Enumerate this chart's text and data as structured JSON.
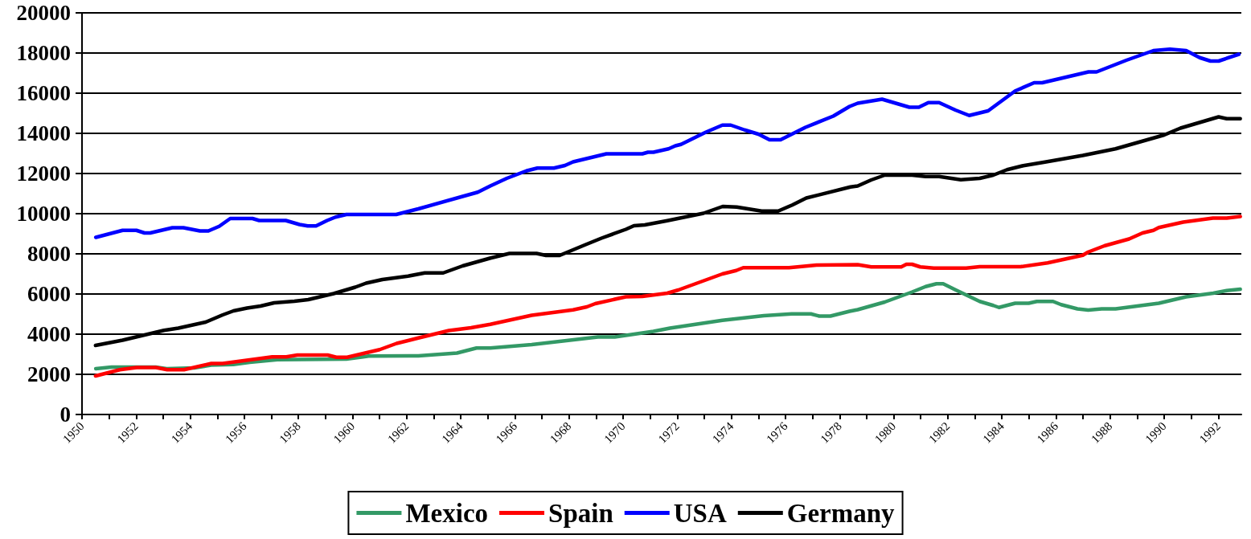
{
  "chart_data": {
    "type": "line",
    "xlim": [
      1950,
      1992.85
    ],
    "xticks": [
      1950,
      {
        "value": 1951,
        "label": null
      },
      1952,
      {
        "value": 1953,
        "label": null
      },
      1954,
      {
        "value": 1955,
        "label": null
      },
      1956,
      {
        "value": 1957,
        "label": null
      },
      1958,
      {
        "value": 1959,
        "label": null
      },
      1960,
      {
        "value": 1961,
        "label": null
      },
      1962,
      {
        "value": 1963,
        "label": null
      },
      1964,
      {
        "value": 1965,
        "label": null
      },
      1966,
      {
        "value": 1967,
        "label": null
      },
      1968,
      {
        "value": 1969,
        "label": null
      },
      1970,
      {
        "value": 1971,
        "label": null
      },
      1972,
      {
        "value": 1973,
        "label": null
      },
      1974,
      {
        "value": 1975,
        "label": null
      },
      1976,
      {
        "value": 1977,
        "label": null
      },
      1978,
      {
        "value": 1979,
        "label": null
      },
      1980,
      {
        "value": 1981,
        "label": null
      },
      1982,
      {
        "value": 1983,
        "label": null
      },
      1984,
      {
        "value": 1985,
        "label": null
      },
      1986,
      {
        "value": 1987,
        "label": null
      },
      1988,
      {
        "value": 1989,
        "label": null
      },
      1990,
      {
        "value": 1991,
        "label": null
      },
      1992
    ],
    "ylim": [
      0,
      20000
    ],
    "yticks": [
      0,
      2000,
      4000,
      6000,
      8000,
      10000,
      12000,
      14000,
      16000,
      18000,
      20000
    ],
    "grid": "y",
    "legend": "bottom",
    "marker": "none",
    "line_style": "solid",
    "series": [
      {
        "name": "Mexico",
        "color": "#339966",
        "x": [
          1950.51,
          1951.09,
          1952.72,
          1953.13,
          1954.15,
          1954.77,
          1955.59,
          1956.2,
          1957.22,
          1959.77,
          1960.39,
          1960.59,
          1962.43,
          1963.86,
          1964.58,
          1965.09,
          1966.62,
          1969.07,
          1969.69,
          1971.12,
          1971.73,
          1973.67,
          1975.2,
          1976.23,
          1976.94,
          1977.25,
          1977.66,
          1978.37,
          1978.67,
          1979.67,
          1980.68,
          1981.18,
          1981.58,
          1981.83,
          1982.28,
          1983.18,
          1983.68,
          1983.89,
          1984.49,
          1984.99,
          1985.29,
          1985.89,
          1986.19,
          1986.79,
          1987.19,
          1987.69,
          1988.2,
          1989.8,
          1990.81,
          1991.81,
          1992.31,
          1992.81
        ],
        "values": [
          2280,
          2360,
          2360,
          2280,
          2320,
          2460,
          2490,
          2600,
          2730,
          2760,
          2870,
          2910,
          2920,
          3060,
          3310,
          3310,
          3480,
          3860,
          3860,
          4140,
          4300,
          4690,
          4920,
          5010,
          5010,
          4900,
          4900,
          5140,
          5220,
          5600,
          6100,
          6370,
          6510,
          6510,
          6210,
          5630,
          5430,
          5330,
          5540,
          5540,
          5630,
          5630,
          5470,
          5260,
          5200,
          5260,
          5260,
          5540,
          5860,
          6040,
          6170,
          6240
        ]
      },
      {
        "name": "Spain",
        "color": "#ff0000",
        "x": [
          1950.5,
          1951.4,
          1952.02,
          1952.73,
          1953.15,
          1953.77,
          1954.78,
          1955.2,
          1957.03,
          1957.55,
          1957.96,
          1959.08,
          1959.4,
          1959.8,
          1961.0,
          1961.63,
          1962.43,
          1963.56,
          1964.38,
          1965.09,
          1966.62,
          1968.15,
          1968.66,
          1968.97,
          1970.1,
          1970.71,
          1971.63,
          1972.04,
          1973.67,
          1974.18,
          1974.44,
          1976.13,
          1977.15,
          1978.67,
          1979.17,
          1980.28,
          1980.47,
          1980.68,
          1980.98,
          1981.48,
          1982.68,
          1983.18,
          1984.69,
          1985.69,
          1986.99,
          1987.19,
          1987.79,
          1988.7,
          1989.2,
          1989.6,
          1989.8,
          1990.7,
          1991.8,
          1992.31,
          1992.81
        ],
        "values": [
          1920,
          2230,
          2340,
          2340,
          2230,
          2230,
          2540,
          2540,
          2870,
          2870,
          2960,
          2960,
          2850,
          2850,
          3230,
          3540,
          3810,
          4180,
          4320,
          4490,
          4940,
          5210,
          5360,
          5520,
          5860,
          5880,
          6040,
          6200,
          7000,
          7170,
          7310,
          7310,
          7440,
          7460,
          7350,
          7350,
          7480,
          7480,
          7350,
          7290,
          7290,
          7360,
          7360,
          7550,
          7930,
          8090,
          8400,
          8740,
          9040,
          9170,
          9310,
          9580,
          9780,
          9780,
          9860
        ]
      },
      {
        "name": "USA",
        "color": "#0000ff",
        "x": [
          1950.51,
          1951.5,
          1952.01,
          1952.31,
          1952.52,
          1953.34,
          1953.75,
          1954.36,
          1954.67,
          1955.07,
          1955.48,
          1956.3,
          1956.55,
          1957.53,
          1958.04,
          1958.34,
          1958.65,
          1959.06,
          1959.37,
          1959.77,
          1961.61,
          1962.43,
          1964.07,
          1964.63,
          1965.09,
          1965.7,
          1966.42,
          1966.83,
          1967.44,
          1967.85,
          1968.15,
          1969.38,
          1970.71,
          1970.92,
          1971.12,
          1971.68,
          1971.93,
          1972.14,
          1973.06,
          1973.67,
          1973.98,
          1974.49,
          1975.0,
          1975.41,
          1975.82,
          1976.74,
          1977.77,
          1978.37,
          1978.67,
          1979.57,
          1980.58,
          1980.93,
          1981.28,
          1981.68,
          1982.28,
          1982.79,
          1983.49,
          1984.49,
          1985.19,
          1985.49,
          1987.2,
          1987.5,
          1988.6,
          1989.6,
          1990.21,
          1990.81,
          1991.31,
          1991.71,
          1992.01,
          1992.76
        ],
        "values": [
          8820,
          9170,
          9170,
          9040,
          9040,
          9300,
          9300,
          9140,
          9140,
          9370,
          9760,
          9760,
          9660,
          9660,
          9460,
          9390,
          9390,
          9660,
          9830,
          9960,
          9960,
          10240,
          10860,
          11070,
          11380,
          11760,
          12130,
          12270,
          12270,
          12400,
          12580,
          12980,
          12980,
          13060,
          13060,
          13230,
          13380,
          13450,
          14060,
          14410,
          14410,
          14170,
          13960,
          13680,
          13680,
          14300,
          14860,
          15340,
          15500,
          15700,
          15300,
          15300,
          15530,
          15530,
          15160,
          14890,
          15120,
          16110,
          16520,
          16520,
          17060,
          17060,
          17640,
          18120,
          18190,
          18120,
          17770,
          17600,
          17600,
          17940
        ]
      },
      {
        "name": "Germany",
        "color": "#000000",
        "x": [
          1950.5,
          1951.5,
          1953.03,
          1953.56,
          1954.57,
          1955.2,
          1955.6,
          1956.1,
          1956.6,
          1957.1,
          1957.85,
          1958.36,
          1959.3,
          1960.1,
          1960.5,
          1961.1,
          1962.05,
          1962.67,
          1963.35,
          1964.07,
          1965.1,
          1965.8,
          1966.8,
          1967.15,
          1967.65,
          1968.58,
          1969.2,
          1970.1,
          1970.4,
          1970.8,
          1971.63,
          1972.97,
          1973.68,
          1974.2,
          1975.12,
          1975.73,
          1976.25,
          1976.77,
          1978.4,
          1978.67,
          1979.17,
          1979.67,
          1980.68,
          1981.18,
          1981.68,
          1982.48,
          1983.18,
          1983.68,
          1984.19,
          1984.79,
          1985.59,
          1986.99,
          1988.2,
          1990.0,
          1990.6,
          1992.01,
          1992.31,
          1992.81
        ],
        "values": [
          3440,
          3700,
          4190,
          4300,
          4600,
          4960,
          5160,
          5300,
          5400,
          5560,
          5640,
          5720,
          6020,
          6340,
          6540,
          6720,
          6890,
          7050,
          7050,
          7400,
          7790,
          8020,
          8020,
          7920,
          7920,
          8440,
          8780,
          9220,
          9400,
          9440,
          9650,
          10020,
          10360,
          10330,
          10130,
          10130,
          10430,
          10780,
          11330,
          11380,
          11680,
          11920,
          11920,
          11850,
          11850,
          11690,
          11760,
          11920,
          12190,
          12390,
          12570,
          12900,
          13230,
          13920,
          14260,
          14820,
          14730,
          14730
        ]
      }
    ]
  }
}
